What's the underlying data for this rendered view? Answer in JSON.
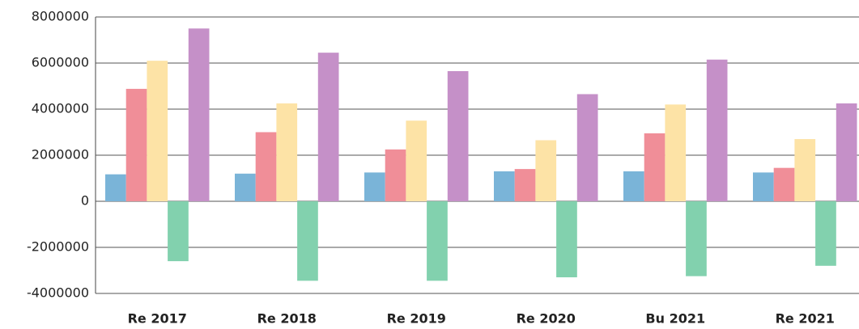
{
  "chart_data": {
    "type": "bar",
    "categories": [
      "Re 2017",
      "Re 2018",
      "Re 2019",
      "Re 2020",
      "Bu 2021",
      "Re 2021"
    ],
    "series": [
      {
        "color": "#7ab4d8",
        "values": [
          1170000,
          1200000,
          1250000,
          1300000,
          1300000,
          1250000
        ]
      },
      {
        "color": "#f08e98",
        "values": [
          4880000,
          3000000,
          2250000,
          1400000,
          2950000,
          1450000
        ]
      },
      {
        "color": "#fde3a6",
        "values": [
          6100000,
          4250000,
          3500000,
          2650000,
          4200000,
          2700000
        ]
      },
      {
        "color": "#82d1ae",
        "values": [
          -2600000,
          -3450000,
          -3450000,
          -3300000,
          -3250000,
          -2800000
        ]
      },
      {
        "color": "#c590c8",
        "values": [
          7500000,
          6450000,
          5650000,
          4650000,
          6150000,
          4250000
        ]
      }
    ],
    "ylim": [
      -4000000,
      8000000
    ],
    "yticks": [
      -4000000,
      -2000000,
      0,
      2000000,
      4000000,
      6000000,
      8000000
    ],
    "grid": true
  }
}
